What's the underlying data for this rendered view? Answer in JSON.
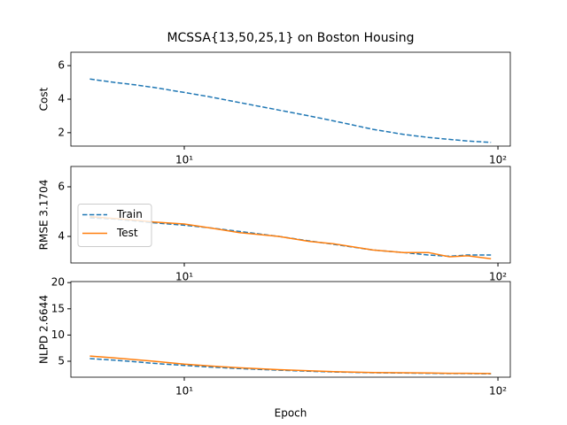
{
  "chart_data": [
    {
      "type": "line",
      "title": "MCSSA{13,50,25,1} on Boston Housing",
      "ylabel": "Cost",
      "log_x": true,
      "x": [
        5,
        6,
        7,
        8,
        10,
        12,
        15,
        20,
        25,
        30,
        40,
        50,
        60,
        70,
        80,
        95
      ],
      "series": [
        {
          "color": "#1f77b4",
          "linestyle": "dashed",
          "values": [
            5.2,
            5.0,
            4.85,
            4.7,
            4.4,
            4.15,
            3.8,
            3.35,
            3.0,
            2.7,
            2.2,
            1.9,
            1.72,
            1.6,
            1.5,
            1.42
          ]
        }
      ],
      "xlim": [
        4.35,
        109.5
      ],
      "xticks": [
        {
          "value": 10,
          "label": "10¹"
        },
        {
          "value": 100,
          "label": "10²"
        }
      ],
      "ylim": [
        1.2,
        6.8
      ],
      "yticks": [
        2,
        4,
        6
      ]
    },
    {
      "type": "line",
      "ylabel": "RMSE 3.1704",
      "log_x": true,
      "legend": "center left",
      "x": [
        5,
        6,
        7,
        8,
        10,
        12,
        15,
        20,
        25,
        30,
        40,
        50,
        60,
        70,
        80,
        95
      ],
      "series": [
        {
          "name": "Train",
          "color": "#1f77b4",
          "linestyle": "dashed",
          "values": [
            4.75,
            4.7,
            4.62,
            4.55,
            4.45,
            4.35,
            4.2,
            4.0,
            3.82,
            3.68,
            3.45,
            3.35,
            3.25,
            3.2,
            3.25,
            3.25
          ]
        },
        {
          "name": "Test",
          "color": "#ff7f0e",
          "linestyle": "solid",
          "values": [
            4.8,
            4.72,
            4.65,
            4.58,
            4.5,
            4.35,
            4.15,
            4.0,
            3.8,
            3.7,
            3.45,
            3.35,
            3.35,
            3.18,
            3.22,
            3.1
          ]
        }
      ],
      "xlim": [
        4.35,
        109.5
      ],
      "xticks": [
        {
          "value": 10,
          "label": "10¹"
        },
        {
          "value": 100,
          "label": "10²"
        }
      ],
      "ylim": [
        2.93,
        6.82
      ],
      "yticks": [
        4,
        6
      ]
    },
    {
      "type": "line",
      "ylabel": "NLPD 2.6644",
      "xlabel": "Epoch",
      "log_x": true,
      "x": [
        5,
        6,
        7,
        8,
        10,
        12,
        15,
        20,
        25,
        30,
        40,
        50,
        60,
        70,
        80,
        95
      ],
      "series": [
        {
          "color": "#1f77b4",
          "linestyle": "dashed",
          "values": [
            5.5,
            5.2,
            4.9,
            4.6,
            4.2,
            3.9,
            3.6,
            3.3,
            3.1,
            2.95,
            2.8,
            2.75,
            2.7,
            2.65,
            2.65,
            2.6
          ]
        },
        {
          "color": "#ff7f0e",
          "linestyle": "solid",
          "values": [
            6.0,
            5.65,
            5.3,
            5.0,
            4.45,
            4.1,
            3.75,
            3.4,
            3.2,
            3.0,
            2.85,
            2.8,
            2.75,
            2.7,
            2.7,
            2.65
          ]
        }
      ],
      "xlim": [
        4.35,
        109.5
      ],
      "xticks": [
        {
          "value": 10,
          "label": "10¹"
        },
        {
          "value": 100,
          "label": "10²"
        }
      ],
      "ylim": [
        1.96,
        20.2
      ],
      "yticks": [
        5,
        10,
        15,
        20
      ]
    }
  ]
}
